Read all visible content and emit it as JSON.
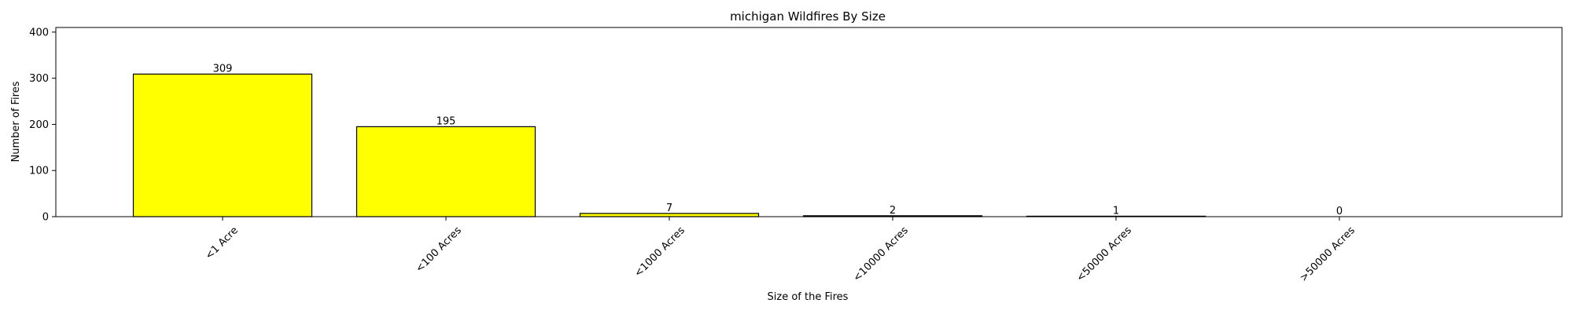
{
  "chart_data": {
    "type": "bar",
    "title": "michigan Wildfires By Size",
    "xlabel": "Size of the Fires",
    "ylabel": "Number of Fires",
    "categories": [
      "<1 Acre",
      "<100 Acres",
      "<1000 Acres",
      "<10000 Acres",
      "<50000 Acres",
      ">50000 Acres"
    ],
    "values": [
      309,
      195,
      7,
      2,
      1,
      0
    ],
    "data_labels": [
      "309",
      "195",
      "7",
      "2",
      "1",
      "0"
    ],
    "ylim": [
      0,
      410
    ],
    "yticks": [
      0,
      100,
      200,
      300,
      400
    ],
    "ytick_labels": [
      "0",
      "100",
      "200",
      "300",
      "400"
    ],
    "grid": false,
    "legend": "none",
    "bar_color": "#ffff00",
    "edge_color": "#000000"
  }
}
